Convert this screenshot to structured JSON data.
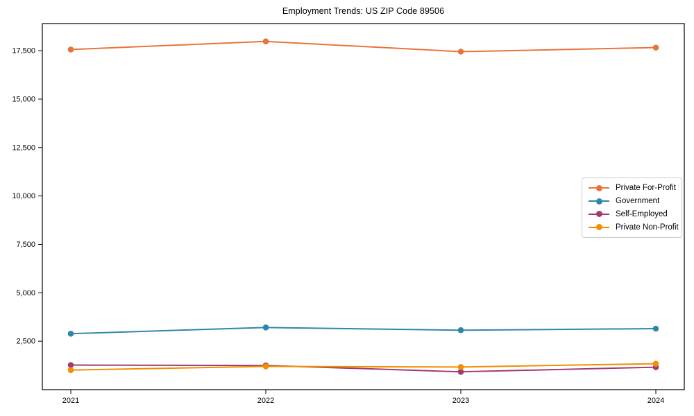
{
  "figure": {
    "background": "#ffffff",
    "axis_color": "#000000",
    "tick_label_color": "#000000",
    "legend_border_color": "#cccccc"
  },
  "chart_data": {
    "type": "line",
    "title": "Employment Trends: US ZIP Code 89506",
    "categories": [
      "2021",
      "2022",
      "2023",
      "2024"
    ],
    "series": [
      {
        "name": "Private For-Profit",
        "color": "#e8743b",
        "values": [
          17560,
          17980,
          17450,
          17660
        ]
      },
      {
        "name": "Government",
        "color": "#2e86ab",
        "values": [
          2890,
          3210,
          3070,
          3150
        ]
      },
      {
        "name": "Self-Employed",
        "color": "#a23b72",
        "values": [
          1270,
          1250,
          920,
          1160
        ]
      },
      {
        "name": "Private Non-Profit",
        "color": "#f18f01",
        "values": [
          1010,
          1200,
          1170,
          1340
        ]
      }
    ],
    "xlabel": "",
    "ylabel": "",
    "ylim": [
      0,
      18900
    ],
    "yticks": [
      2500,
      5000,
      7500,
      10000,
      12500,
      15000,
      17500
    ],
    "grid": false,
    "legend_position": "center-right",
    "marker": "circle"
  }
}
